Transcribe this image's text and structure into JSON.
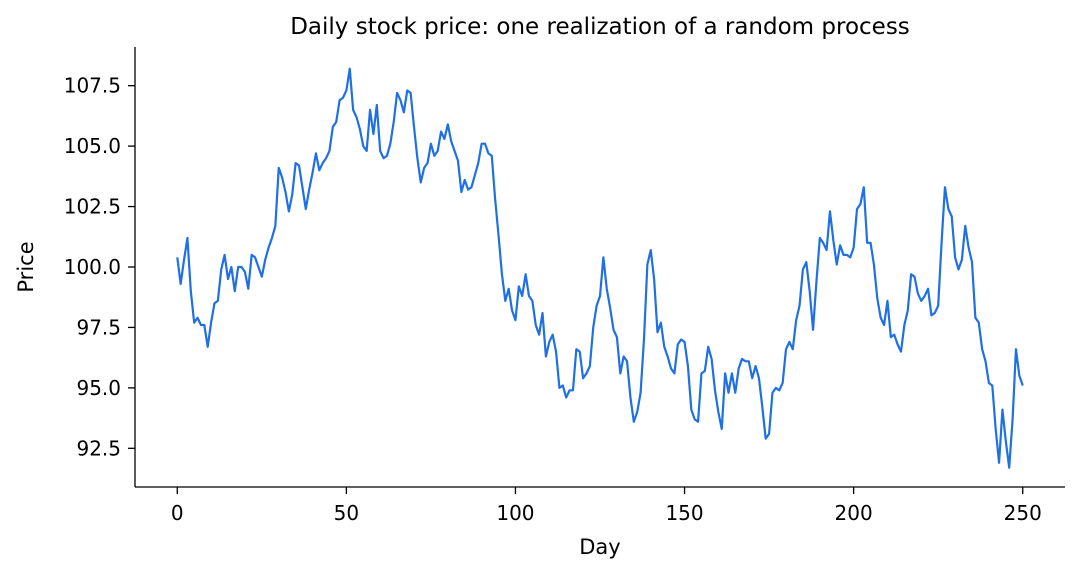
{
  "chart_data": {
    "type": "line",
    "title": "Daily stock price: one realization of a random process",
    "xlabel": "Day",
    "ylabel": "Price",
    "xlim": [
      -12.5,
      262.5
    ],
    "ylim": [
      90.9,
      109.1
    ],
    "xticks": [
      0,
      50,
      100,
      150,
      200,
      250
    ],
    "xtick_labels": [
      "0",
      "50",
      "100",
      "150",
      "200",
      "250"
    ],
    "yticks": [
      92.5,
      95.0,
      97.5,
      100.0,
      102.5,
      105.0,
      107.5
    ],
    "ytick_labels": [
      "92.5",
      "95.0",
      "97.5",
      "100.0",
      "102.5",
      "105.0",
      "107.5"
    ],
    "grid": false,
    "legend": "none",
    "line_color": "#1f6fe5",
    "series": [
      {
        "x": [
          0,
          1,
          2,
          3,
          4,
          5,
          6,
          7,
          8,
          9,
          10,
          11,
          12,
          13,
          14,
          15,
          16,
          17,
          18,
          19,
          20,
          21,
          22,
          23,
          24,
          25,
          26,
          27,
          28,
          29,
          30,
          31,
          32,
          33,
          34,
          35,
          36,
          37,
          38,
          39,
          40,
          41,
          42,
          43,
          44,
          45,
          46,
          47,
          48,
          49,
          50,
          51,
          52,
          53,
          54,
          55,
          56,
          57,
          58,
          59,
          60,
          61,
          62,
          63,
          64,
          65,
          66,
          67,
          68,
          69,
          70,
          71,
          72,
          73,
          74,
          75,
          76,
          77,
          78,
          79,
          80,
          81,
          82,
          83,
          84,
          85,
          86,
          87,
          88,
          89,
          90,
          91,
          92,
          93,
          94,
          95,
          96,
          97,
          98,
          99,
          100,
          101,
          102,
          103,
          104,
          105,
          106,
          107,
          108,
          109,
          110,
          111,
          112,
          113,
          114,
          115,
          116,
          117,
          118,
          119,
          120,
          121,
          122,
          123,
          124,
          125,
          126,
          127,
          128,
          129,
          130,
          131,
          132,
          133,
          134,
          135,
          136,
          137,
          138,
          139,
          140,
          141,
          142,
          143,
          144,
          145,
          146,
          147,
          148,
          149,
          150,
          151,
          152,
          153,
          154,
          155,
          156,
          157,
          158,
          159,
          160,
          161,
          162,
          163,
          164,
          165,
          166,
          167,
          168,
          169,
          170,
          171,
          172,
          173,
          174,
          175,
          176,
          177,
          178,
          179,
          180,
          181,
          182,
          183,
          184,
          185,
          186,
          187,
          188,
          189,
          190,
          191,
          192,
          193,
          194,
          195,
          196,
          197,
          198,
          199,
          200,
          201,
          202,
          203,
          204,
          205,
          206,
          207,
          208,
          209,
          210,
          211,
          212,
          213,
          214,
          215,
          216,
          217,
          218,
          219,
          220,
          221,
          222,
          223,
          224,
          225,
          226,
          227,
          228,
          229,
          230,
          231,
          232,
          233,
          234,
          235,
          236,
          237,
          238,
          239,
          240,
          241,
          242,
          243,
          244,
          245,
          246,
          247,
          248,
          249,
          250
        ],
        "y": [
          100.4,
          99.3,
          100.3,
          101.2,
          99.0,
          97.7,
          97.9,
          97.6,
          97.6,
          96.7,
          97.7,
          98.5,
          98.6,
          99.9,
          100.5,
          99.5,
          100.0,
          99.0,
          100.0,
          100.0,
          99.8,
          99.1,
          100.5,
          100.4,
          100.0,
          99.6,
          100.3,
          100.8,
          101.2,
          101.7,
          104.1,
          103.7,
          103.1,
          102.3,
          103.0,
          104.3,
          104.2,
          103.3,
          102.4,
          103.2,
          103.9,
          104.7,
          104.0,
          104.3,
          104.5,
          104.8,
          105.8,
          106.0,
          106.9,
          107.0,
          107.3,
          108.2,
          106.5,
          106.2,
          105.7,
          105.0,
          104.8,
          106.5,
          105.5,
          106.7,
          104.8,
          104.5,
          104.6,
          105.1,
          106.0,
          107.2,
          106.9,
          106.4,
          107.3,
          107.2,
          105.8,
          104.5,
          103.5,
          104.1,
          104.3,
          105.1,
          104.6,
          104.8,
          105.6,
          105.3,
          105.9,
          105.2,
          104.8,
          104.4,
          103.1,
          103.6,
          103.2,
          103.3,
          103.8,
          104.3,
          105.1,
          105.1,
          104.7,
          104.6,
          102.8,
          101.3,
          99.7,
          98.6,
          99.1,
          98.2,
          97.8,
          99.2,
          98.8,
          99.7,
          98.8,
          98.6,
          97.6,
          97.2,
          98.1,
          96.3,
          96.9,
          97.2,
          96.5,
          95.0,
          95.1,
          94.6,
          94.9,
          94.9,
          96.6,
          96.5,
          95.4,
          95.6,
          95.9,
          97.5,
          98.4,
          98.8,
          100.4,
          99.1,
          98.3,
          97.4,
          97.1,
          95.6,
          96.3,
          96.1,
          94.6,
          93.6,
          94.0,
          94.8,
          97.0,
          100.1,
          100.7,
          99.5,
          97.3,
          97.7,
          96.7,
          96.3,
          95.8,
          95.6,
          96.8,
          97.0,
          96.9,
          95.9,
          94.1,
          93.7,
          93.6,
          95.6,
          95.7,
          96.7,
          96.2,
          94.9,
          94.0,
          93.3,
          95.6,
          94.8,
          95.6,
          94.8,
          95.8,
          96.2,
          96.1,
          96.1,
          95.4,
          95.9,
          95.4,
          94.2,
          92.9,
          93.1,
          94.8,
          95.0,
          94.9,
          95.2,
          96.6,
          96.9,
          96.6,
          97.8,
          98.4,
          99.9,
          100.2,
          99.0,
          97.4,
          99.4,
          101.2,
          101.0,
          100.7,
          102.3,
          101.1,
          100.1,
          100.9,
          100.5,
          100.5,
          100.4,
          100.8,
          102.4,
          102.6,
          103.3,
          101.0,
          101.0,
          100.1,
          98.7,
          97.9,
          97.6,
          98.6,
          97.1,
          97.2,
          96.8,
          96.5,
          97.6,
          98.2,
          99.7,
          99.6,
          98.9,
          98.6,
          98.8,
          99.1,
          98.0,
          98.1,
          98.4,
          101.0,
          103.3,
          102.4,
          102.1,
          100.4,
          99.9,
          100.3,
          101.7,
          100.8,
          100.2,
          97.9,
          97.7,
          96.6,
          96.1,
          95.2,
          95.1,
          93.3,
          91.9,
          94.1,
          92.8,
          91.7,
          93.7,
          96.6,
          95.5,
          95.1
        ]
      }
    ]
  }
}
